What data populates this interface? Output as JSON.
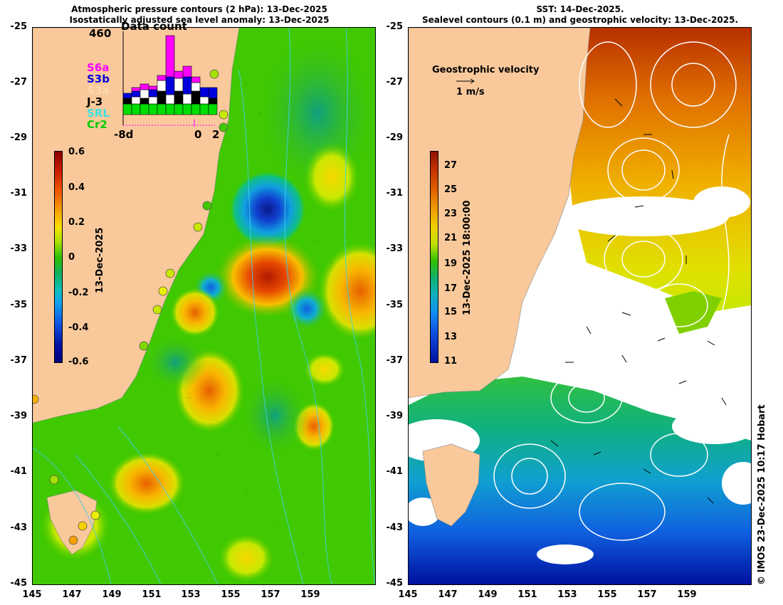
{
  "left": {
    "title_line1": "Atmospheric pressure contours (2 hPa): 13-Dec-2025",
    "title_line2": "Isostatically adjusted sea level anomaly: 13-Dec-2025",
    "colorbar_ticks": [
      "0.6",
      "0.4",
      "0.2",
      "0",
      "-0.2",
      "-0.4",
      "-0.6"
    ],
    "colorbar_label": "13-Dec-2025",
    "data_count": {
      "title": "Data count",
      "max": "460",
      "xticks": [
        "-8d",
        "0",
        "2"
      ],
      "satellites": [
        {
          "name": "S6a",
          "color": "#ff00ff"
        },
        {
          "name": "S3b",
          "color": "#0000dd"
        },
        {
          "name": "S3a",
          "color": "#ffc8a0"
        },
        {
          "name": "J-3",
          "color": "#000000"
        },
        {
          "name": "SRL",
          "color": "#40e0e0"
        },
        {
          "name": "Cr2",
          "color": "#00cc00"
        }
      ]
    }
  },
  "right": {
    "title_line1": "SST: 14-Dec-2025.",
    "title_line2": "Sealevel contours (0.1 m) and geostrophic velocity: 13-Dec-2025.",
    "velocity_label": "Geostrophic velocity",
    "velocity_scale": "1 m/s",
    "colorbar_ticks": [
      "27",
      "25",
      "23",
      "21",
      "19",
      "17",
      "15",
      "13",
      "11"
    ],
    "colorbar_label": "13-Dec-2025 18:00:00"
  },
  "y_ticks": [
    "-25",
    "-27",
    "-29",
    "-31",
    "-33",
    "-35",
    "-37",
    "-39",
    "-41",
    "-43",
    "-45"
  ],
  "x_ticks": [
    "145",
    "147",
    "149",
    "151",
    "153",
    "155",
    "157",
    "159"
  ],
  "credit": "© IMOS 23-Dec-2025 10:17 Hobart"
}
